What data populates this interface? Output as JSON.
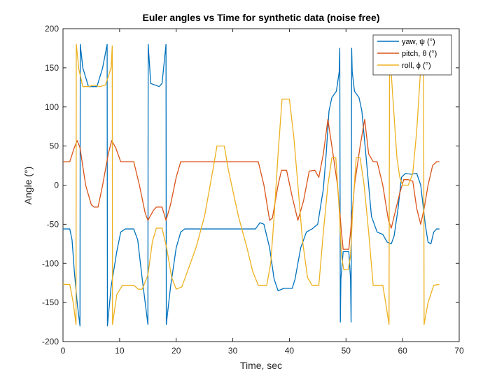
{
  "chart_data": {
    "type": "line",
    "title": "Euler angles vs Time for synthetic data (noise free)",
    "xlabel": "Time, sec",
    "ylabel": "Angle  (°)",
    "xlim": [
      0,
      70
    ],
    "ylim": [
      -200,
      200
    ],
    "xticks": [
      0,
      10,
      20,
      30,
      40,
      50,
      60,
      70
    ],
    "yticks": [
      -200,
      -150,
      -100,
      -50,
      0,
      50,
      100,
      150,
      200
    ],
    "grid": false,
    "legend_position": "top-right",
    "series": [
      {
        "name": "yaw,  ψ  (°)",
        "color": "#0072BD",
        "points": [
          [
            0,
            -56
          ],
          [
            1.2,
            -56
          ],
          [
            1.6,
            -70
          ],
          [
            2,
            -110
          ],
          [
            2.5,
            -150
          ],
          [
            3,
            -180
          ],
          [
            3.05,
            180
          ],
          [
            3.5,
            150
          ],
          [
            4.5,
            126
          ],
          [
            6,
            126
          ],
          [
            7,
            150
          ],
          [
            7.8,
            180
          ],
          [
            7.85,
            -180
          ],
          [
            8.5,
            -130
          ],
          [
            9.5,
            -85
          ],
          [
            10.2,
            -60
          ],
          [
            11,
            -56
          ],
          [
            12.5,
            -56
          ],
          [
            13.2,
            -70
          ],
          [
            14,
            -120
          ],
          [
            15,
            -178
          ],
          [
            15.05,
            180
          ],
          [
            15.5,
            130
          ],
          [
            17,
            126
          ],
          [
            17.5,
            130
          ],
          [
            18.2,
            180
          ],
          [
            18.25,
            -178
          ],
          [
            19,
            -130
          ],
          [
            20,
            -80
          ],
          [
            20.8,
            -60
          ],
          [
            21.5,
            -56
          ],
          [
            34,
            -56
          ],
          [
            34.8,
            -48
          ],
          [
            35.5,
            -50
          ],
          [
            36.5,
            -80
          ],
          [
            37.3,
            -120
          ],
          [
            38,
            -135
          ],
          [
            39,
            -132
          ],
          [
            40.5,
            -132
          ],
          [
            41,
            -120
          ],
          [
            42,
            -80
          ],
          [
            43,
            -60
          ],
          [
            44,
            -56
          ],
          [
            45,
            -50
          ],
          [
            46,
            -5
          ],
          [
            46.5,
            40
          ],
          [
            47,
            95
          ],
          [
            47.5,
            112
          ],
          [
            48.3,
            120
          ],
          [
            48.8,
            145
          ],
          [
            48.9,
            175
          ],
          [
            49.0,
            -175
          ],
          [
            49.1,
            -120
          ],
          [
            49.5,
            -85
          ],
          [
            50.5,
            -85
          ],
          [
            50.8,
            -120
          ],
          [
            50.9,
            -175
          ],
          [
            51.0,
            175
          ],
          [
            51.1,
            145
          ],
          [
            51.5,
            120
          ],
          [
            52.3,
            112
          ],
          [
            52.8,
            95
          ],
          [
            53.5,
            40
          ],
          [
            54.5,
            -40
          ],
          [
            55.5,
            -60
          ],
          [
            56.5,
            -63
          ],
          [
            57.3,
            -73
          ],
          [
            58,
            -75
          ],
          [
            58.5,
            -65
          ],
          [
            59.2,
            -30
          ],
          [
            59.8,
            10
          ],
          [
            60.5,
            15
          ],
          [
            61.5,
            14
          ],
          [
            62.5,
            15
          ],
          [
            63.2,
            0
          ],
          [
            64,
            -50
          ],
          [
            64.5,
            -73
          ],
          [
            65,
            -75
          ],
          [
            65.5,
            -60
          ],
          [
            66,
            -56
          ],
          [
            66.5,
            -56
          ]
        ]
      },
      {
        "name": "pitch,  θ  (°)",
        "color": "#D95319",
        "points": [
          [
            0,
            30
          ],
          [
            1.2,
            30
          ],
          [
            2,
            48
          ],
          [
            2.5,
            57
          ],
          [
            3,
            48
          ],
          [
            4,
            0
          ],
          [
            5,
            -25
          ],
          [
            5.5,
            -28
          ],
          [
            6.2,
            -28
          ],
          [
            7,
            0
          ],
          [
            8,
            40
          ],
          [
            8.6,
            57
          ],
          [
            9.3,
            48
          ],
          [
            10.2,
            30
          ],
          [
            12.5,
            30
          ],
          [
            13.5,
            0
          ],
          [
            14.5,
            -35
          ],
          [
            15,
            -45
          ],
          [
            16,
            -32
          ],
          [
            16.5,
            -28
          ],
          [
            17.5,
            -28
          ],
          [
            18.2,
            -45
          ],
          [
            19,
            -25
          ],
          [
            20,
            10
          ],
          [
            20.8,
            30
          ],
          [
            34.5,
            30
          ],
          [
            35.5,
            0
          ],
          [
            36.5,
            -45
          ],
          [
            37,
            -42
          ],
          [
            38,
            0
          ],
          [
            38.6,
            19
          ],
          [
            39.5,
            19
          ],
          [
            40.5,
            -15
          ],
          [
            41.5,
            -45
          ],
          [
            42.5,
            -20
          ],
          [
            43.5,
            18
          ],
          [
            44.5,
            19
          ],
          [
            45.2,
            10
          ],
          [
            46,
            40
          ],
          [
            46.8,
            84
          ],
          [
            47.5,
            50
          ],
          [
            48.5,
            0
          ],
          [
            49.2,
            -60
          ],
          [
            49.5,
            -82
          ],
          [
            50.5,
            -82
          ],
          [
            50.8,
            -60
          ],
          [
            51.5,
            0
          ],
          [
            52.5,
            50
          ],
          [
            53.3,
            84
          ],
          [
            54,
            40
          ],
          [
            54.8,
            30
          ],
          [
            55.5,
            30
          ],
          [
            56.5,
            0
          ],
          [
            57.5,
            -45
          ],
          [
            58,
            -55
          ],
          [
            58.5,
            -40
          ],
          [
            59.5,
            -10
          ],
          [
            60.2,
            7
          ],
          [
            61,
            7
          ],
          [
            61.8,
            5
          ],
          [
            62.5,
            -30
          ],
          [
            63.2,
            -50
          ],
          [
            63.8,
            -30
          ],
          [
            64.5,
            0
          ],
          [
            65.3,
            25
          ],
          [
            66,
            30
          ],
          [
            66.5,
            30
          ]
        ]
      },
      {
        "name": "roll,  ϕ  (°)",
        "color": "#EDB120",
        "points": [
          [
            0,
            -127
          ],
          [
            1.2,
            -127
          ],
          [
            1.8,
            -150
          ],
          [
            2.3,
            -178
          ],
          [
            2.35,
            180
          ],
          [
            2.8,
            148
          ],
          [
            3.5,
            126
          ],
          [
            4.5,
            126
          ],
          [
            5.5,
            128
          ],
          [
            6.5,
            126
          ],
          [
            7.5,
            128
          ],
          [
            8.5,
            150
          ],
          [
            8.7,
            178
          ],
          [
            8.75,
            -178
          ],
          [
            9.5,
            -140
          ],
          [
            10.5,
            -128
          ],
          [
            12.5,
            -128
          ],
          [
            13.3,
            -133
          ],
          [
            14,
            -133
          ],
          [
            15,
            -115
          ],
          [
            15.8,
            -72
          ],
          [
            16.5,
            -55
          ],
          [
            17.5,
            -55
          ],
          [
            18.3,
            -80
          ],
          [
            19.2,
            -118
          ],
          [
            20,
            -133
          ],
          [
            21,
            -130
          ],
          [
            22,
            -110
          ],
          [
            23.5,
            -80
          ],
          [
            25,
            -40
          ],
          [
            26.5,
            20
          ],
          [
            27.2,
            50
          ],
          [
            28.5,
            50
          ],
          [
            29.2,
            20
          ],
          [
            31,
            -40
          ],
          [
            32.5,
            -80
          ],
          [
            33.5,
            -110
          ],
          [
            34.5,
            -128
          ],
          [
            36,
            -128
          ],
          [
            36.7,
            -100
          ],
          [
            37.3,
            -40
          ],
          [
            38,
            40
          ],
          [
            38.7,
            110
          ],
          [
            40,
            110
          ],
          [
            40.8,
            60
          ],
          [
            41.5,
            0
          ],
          [
            42.3,
            -70
          ],
          [
            43.2,
            -118
          ],
          [
            44,
            -128
          ],
          [
            45.2,
            -128
          ],
          [
            46,
            -60
          ],
          [
            46.8,
            0
          ],
          [
            47.5,
            35
          ],
          [
            48.2,
            35
          ],
          [
            48.8,
            -30
          ],
          [
            49.2,
            -90
          ],
          [
            49.6,
            -108
          ],
          [
            50.4,
            -108
          ],
          [
            50.8,
            -90
          ],
          [
            51.2,
            -30
          ],
          [
            51.8,
            35
          ],
          [
            52.5,
            35
          ],
          [
            53.2,
            0
          ],
          [
            54,
            -60
          ],
          [
            54.8,
            -128
          ],
          [
            55.5,
            -128
          ],
          [
            56.5,
            -128
          ],
          [
            57,
            -150
          ],
          [
            57.6,
            -178
          ],
          [
            57.7,
            178
          ],
          [
            58.2,
            120
          ],
          [
            59,
            35
          ],
          [
            59.5,
            10
          ],
          [
            60,
            0
          ],
          [
            61,
            0
          ],
          [
            61.8,
            15
          ],
          [
            62.5,
            70
          ],
          [
            63.2,
            150
          ],
          [
            63.7,
            178
          ],
          [
            63.8,
            -178
          ],
          [
            64.5,
            -150
          ],
          [
            65.5,
            -128
          ],
          [
            66.5,
            -127
          ]
        ]
      }
    ]
  }
}
